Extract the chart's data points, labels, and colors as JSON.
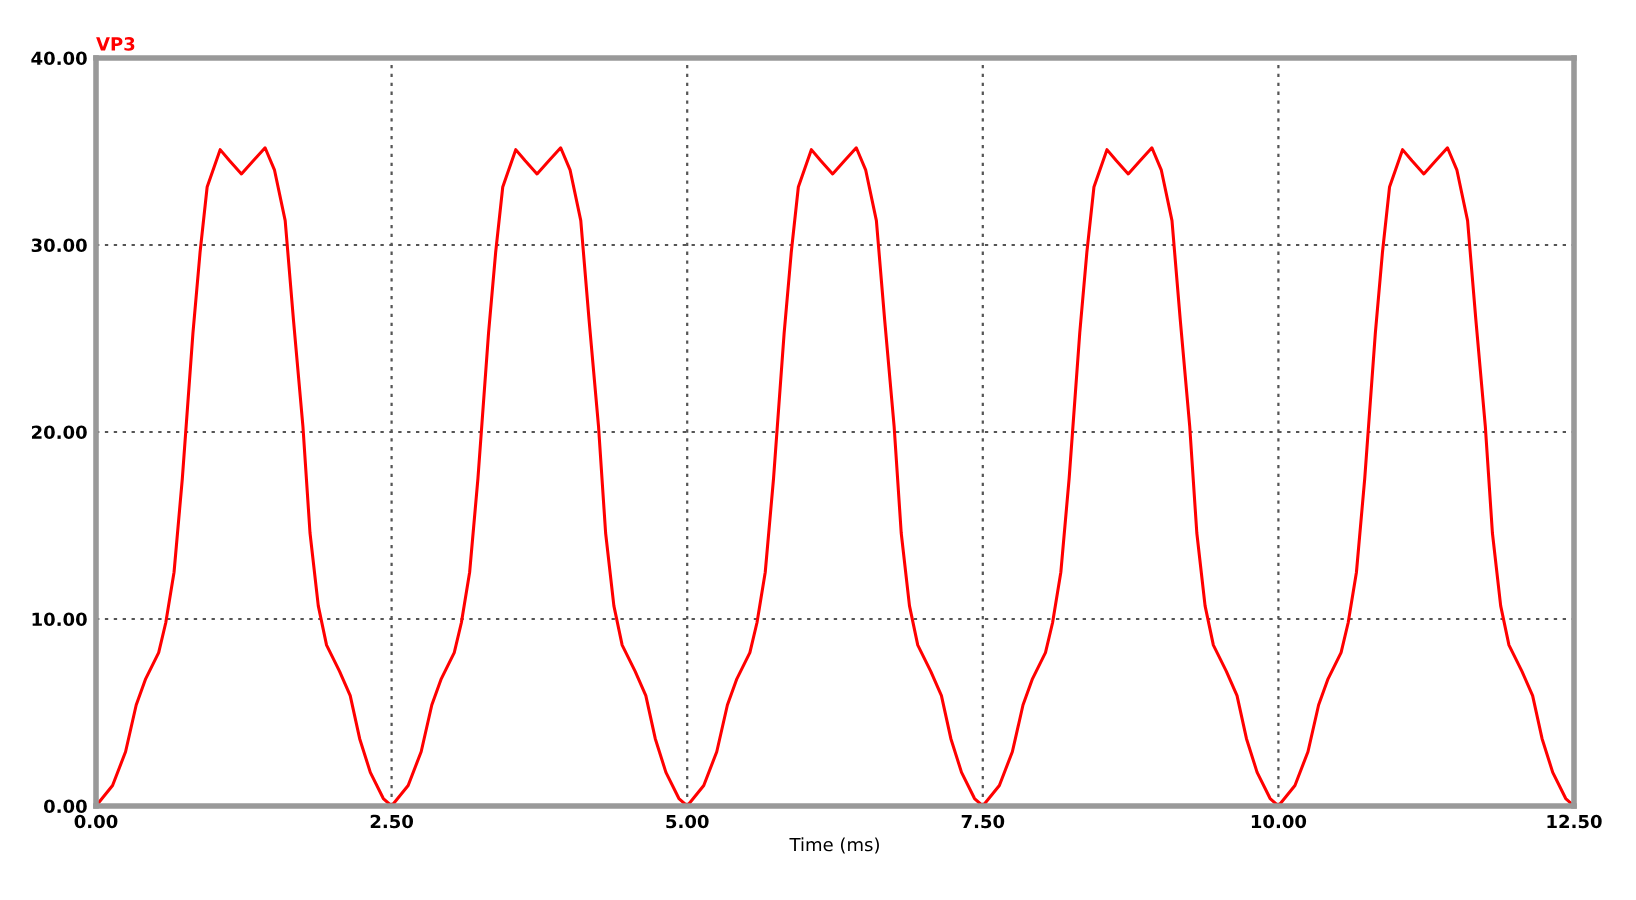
{
  "chart_data": {
    "type": "line",
    "xlabel": "Time (ms)",
    "xlim": [
      0,
      12.5
    ],
    "xticks": [
      {
        "value": 0,
        "label": "0.00"
      },
      {
        "value": 2.5,
        "label": "2.50"
      },
      {
        "value": 5,
        "label": "5.00"
      },
      {
        "value": 7.5,
        "label": "7.50"
      },
      {
        "value": 10,
        "label": "10.00"
      },
      {
        "value": 12.5,
        "label": "12.50"
      }
    ],
    "ylim": [
      0,
      40
    ],
    "yticks": [
      {
        "value": 0,
        "label": "0.00"
      },
      {
        "value": 10,
        "label": "10.00"
      },
      {
        "value": 20,
        "label": "20.00"
      },
      {
        "value": 30,
        "label": "30.00"
      },
      {
        "value": 40,
        "label": "40.00"
      }
    ],
    "grid": true,
    "line_style": "solid",
    "marker": "none",
    "legend": "top left",
    "series": [
      {
        "name": "VP3",
        "color": "#ff0000",
        "x": [
          0,
          0.14,
          0.25,
          0.34,
          0.42,
          0.53,
          0.59,
          0.66,
          0.73,
          0.82,
          0.88,
          0.94,
          1.05,
          1.13,
          1.23,
          1.33,
          1.43,
          1.51,
          1.6,
          1.67,
          1.75,
          1.81,
          1.88,
          1.95,
          2.06,
          2.15,
          2.23,
          2.32,
          2.43,
          2.5,
          2.64,
          2.75,
          2.84,
          2.92,
          3.03,
          3.09,
          3.16,
          3.23,
          3.32,
          3.38,
          3.44,
          3.55,
          3.63,
          3.73,
          3.83,
          3.93,
          4.01,
          4.1,
          4.17,
          4.25,
          4.31,
          4.38,
          4.45,
          4.56,
          4.65,
          4.73,
          4.82,
          4.93,
          5,
          5.14,
          5.25,
          5.34,
          5.42,
          5.53,
          5.59,
          5.66,
          5.73,
          5.82,
          5.88,
          5.94,
          6.05,
          6.13,
          6.23,
          6.33,
          6.43,
          6.51,
          6.6,
          6.67,
          6.75,
          6.81,
          6.88,
          6.95,
          7.06,
          7.15,
          7.23,
          7.32,
          7.43,
          7.5,
          7.64,
          7.75,
          7.84,
          7.92,
          8.03,
          8.09,
          8.16,
          8.23,
          8.32,
          8.38,
          8.44,
          8.55,
          8.63,
          8.73,
          8.83,
          8.93,
          9.01,
          9.1,
          9.17,
          9.25,
          9.31,
          9.38,
          9.45,
          9.56,
          9.65,
          9.73,
          9.82,
          9.93,
          10,
          10.14,
          10.25,
          10.34,
          10.42,
          10.53,
          10.59,
          10.66,
          10.73,
          10.82,
          10.88,
          10.94,
          11.05,
          11.13,
          11.23,
          11.33,
          11.43,
          11.51,
          11.6,
          11.67,
          11.75,
          11.81,
          11.88,
          11.95,
          12.06,
          12.15,
          12.23,
          12.32,
          12.43,
          12.5
        ],
        "values": [
          0,
          1.1,
          2.9,
          5.4,
          6.8,
          8.2,
          9.8,
          12.5,
          17.5,
          25.3,
          29.6,
          33.1,
          35.1,
          34.5,
          33.8,
          34.5,
          35.2,
          34.0,
          31.3,
          26.0,
          20.3,
          14.6,
          10.7,
          8.6,
          7.2,
          5.9,
          3.6,
          1.8,
          0.4,
          0,
          1.1,
          2.9,
          5.4,
          6.8,
          8.2,
          9.8,
          12.5,
          17.5,
          25.3,
          29.6,
          33.1,
          35.1,
          34.5,
          33.8,
          34.5,
          35.2,
          34.0,
          31.3,
          26.0,
          20.3,
          14.6,
          10.7,
          8.6,
          7.2,
          5.9,
          3.6,
          1.8,
          0.4,
          0,
          1.1,
          2.9,
          5.4,
          6.8,
          8.2,
          9.8,
          12.5,
          17.5,
          25.3,
          29.6,
          33.1,
          35.1,
          34.5,
          33.8,
          34.5,
          35.2,
          34.0,
          31.3,
          26.0,
          20.3,
          14.6,
          10.7,
          8.6,
          7.2,
          5.9,
          3.6,
          1.8,
          0.4,
          0,
          1.1,
          2.9,
          5.4,
          6.8,
          8.2,
          9.8,
          12.5,
          17.5,
          25.3,
          29.6,
          33.1,
          35.1,
          34.5,
          33.8,
          34.5,
          35.2,
          34.0,
          31.3,
          26.0,
          20.3,
          14.6,
          10.7,
          8.6,
          7.2,
          5.9,
          3.6,
          1.8,
          0.4,
          0,
          1.1,
          2.9,
          5.4,
          6.8,
          8.2,
          9.8,
          12.5,
          17.5,
          25.3,
          29.6,
          33.1,
          35.1,
          34.5,
          33.8,
          34.5,
          35.2,
          34.0,
          31.3,
          26.0,
          20.3,
          14.6,
          10.7,
          8.6,
          7.2,
          5.9,
          3.6,
          1.8,
          0.4,
          0
        ]
      }
    ]
  }
}
